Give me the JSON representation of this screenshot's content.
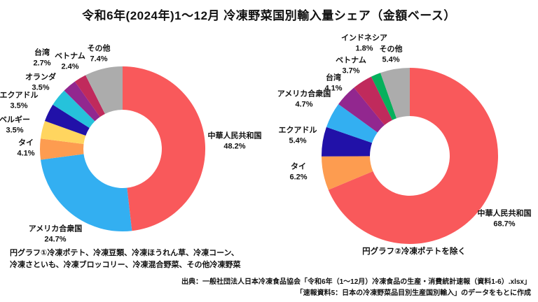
{
  "title": "令和6年(2024年)1～12月 冷凍野菜国別輸入量シェア（金額ベース）",
  "chart_data": [
    {
      "type": "pie",
      "subtype": "donut",
      "name": "円グラフ①",
      "unit": "%",
      "start": "top",
      "direction": "clockwise",
      "caption_lines": [
        "円グラフ①冷凍ポテト、冷凍豆類、冷凍ほうれん草、冷凍コーン、",
        "冷凍さといも、冷凍ブロッコリー、冷凍混合野菜、その他冷凍野菜"
      ],
      "slices": [
        {
          "label": "中華人民共和国",
          "value": 48.2,
          "color": "#F9595B"
        },
        {
          "label": "アメリカ合衆国",
          "value": 24.7,
          "color": "#33AFF1"
        },
        {
          "label": "タイ",
          "value": 4.1,
          "color": "#FD9C50"
        },
        {
          "label": "ベルギー",
          "value": 3.5,
          "color": "#FFD55F"
        },
        {
          "label": "エクアドル",
          "value": 3.5,
          "color": "#2111A8"
        },
        {
          "label": "オランダ",
          "value": 3.5,
          "color": "#26C2DB"
        },
        {
          "label": "台湾",
          "value": 2.7,
          "color": "#92278F"
        },
        {
          "label": "ベトナム",
          "value": 2.4,
          "color": "#C02A5C"
        },
        {
          "label": "その他",
          "value": 7.4,
          "color": "#ACACAC"
        }
      ]
    },
    {
      "type": "pie",
      "subtype": "donut",
      "name": "円グラフ②",
      "unit": "%",
      "start": "top",
      "direction": "clockwise",
      "caption": "円グラフ②冷凍ポテトを除く",
      "slices": [
        {
          "label": "中華人民共和国",
          "value": 68.7,
          "color": "#F9595B"
        },
        {
          "label": "タイ",
          "value": 6.2,
          "color": "#FD9C50"
        },
        {
          "label": "エクアドル",
          "value": 5.4,
          "color": "#2111A8"
        },
        {
          "label": "アメリカ合衆国",
          "value": 4.7,
          "color": "#33AFF1"
        },
        {
          "label": "台湾",
          "value": 4.1,
          "color": "#92278F"
        },
        {
          "label": "ベトナム",
          "value": 3.7,
          "color": "#C02A5C"
        },
        {
          "label": "インドネシア",
          "value": 1.8,
          "color": "#06B05C"
        },
        {
          "label": "その他",
          "value": 5.4,
          "color": "#ACACAC"
        }
      ]
    }
  ],
  "source_lines": [
    "出典：一般社団法人日本冷凍食品協会「令和6年（1～12月）冷凍食品の生産・消費統計速報（資料1-6）.xlsx」",
    "「速報資料5：日本の冷凍野菜品目別生産国別輸入」のデータをもとに作成"
  ]
}
